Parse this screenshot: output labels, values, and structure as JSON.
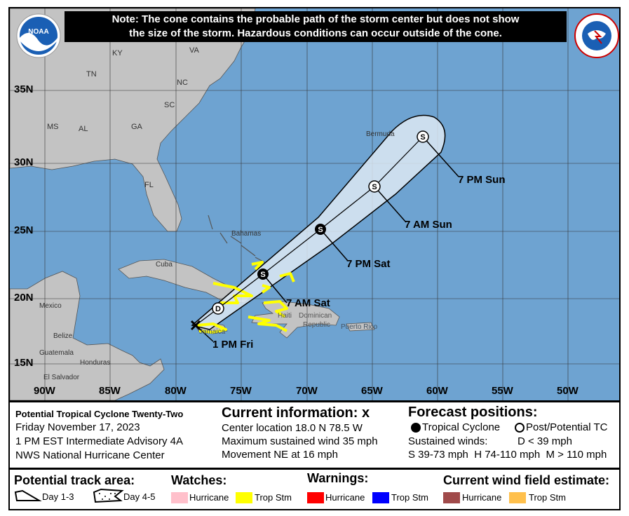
{
  "note": {
    "line1": "Note: The cone contains the probable path of the storm center but does not show",
    "line2": "the size of the storm. Hazardous conditions can occur outside of the cone."
  },
  "logos": {
    "left": "NOAA",
    "right": "NATIONAL WEATHER SERVICE"
  },
  "map": {
    "colors": {
      "ocean": "#6ea3d1",
      "land": "#c3c3c3",
      "cone": "#dde9f3",
      "watch_trop_stm": "#ffff00"
    },
    "lat_labels": [
      "35N",
      "30N",
      "25N",
      "20N",
      "15N"
    ],
    "lon_labels": [
      "90W",
      "85W",
      "80W",
      "75W",
      "70W",
      "65W",
      "60W",
      "55W",
      "50W"
    ],
    "place_labels": {
      "ky": "KY",
      "va": "VA",
      "tn": "TN",
      "nc": "NC",
      "sc": "SC",
      "ms": "MS",
      "al": "AL",
      "ga": "GA",
      "fl": "FL",
      "bermuda": "Bermuda",
      "bahamas": "Bahamas",
      "cuba": "Cuba",
      "mexico": "Mexico",
      "belize": "Belize",
      "guatemala": "Guatemala",
      "honduras": "Honduras",
      "el_salvador": "El Salvador",
      "jamaica": "Jamaica",
      "haiti": "Haiti",
      "dominican": "Dominican",
      "republic": "Republic",
      "puerto_rico": "Puerto Rico"
    },
    "track": [
      {
        "label": "1 PM Fri",
        "symbol": "X"
      },
      {
        "label": "",
        "symbol": "D",
        "type": "post-potential"
      },
      {
        "label": "7 AM Sat",
        "symbol": "S",
        "type": "tropical"
      },
      {
        "label": "7 PM Sat",
        "symbol": "S",
        "type": "tropical"
      },
      {
        "label": "7 AM Sun",
        "symbol": "S",
        "type": "post-potential"
      },
      {
        "label": "7 PM Sun",
        "symbol": "S",
        "type": "post-potential"
      }
    ]
  },
  "info": {
    "storm_name": "Potential Tropical Cyclone Twenty-Two",
    "date": "Friday November 17, 2023",
    "advisory": "1 PM EST Intermediate Advisory 4A",
    "center": "NWS National Hurricane Center",
    "current_title": "Current information: x",
    "center_location": "Center location 18.0 N 78.5 W",
    "max_wind": "Maximum sustained wind 35 mph",
    "movement": "Movement NE at 16 mph",
    "forecast_title": "Forecast positions:",
    "tropical_cyclone": "Tropical Cyclone",
    "post_potential": "Post/Potential TC",
    "sustained_winds": "Sustained winds:",
    "d_range": "D < 39 mph",
    "s_h_m": "S 39-73 mph  H 74-110 mph  M > 110 mph"
  },
  "legend": {
    "track_area": "Potential track area:",
    "day13": "Day 1-3",
    "day45": "Day 4-5",
    "watches": "Watches:",
    "warnings": "Warnings:",
    "wind_field": "Current wind field estimate:",
    "items": [
      {
        "label": "Hurricane",
        "color": "#ffc0cb"
      },
      {
        "label": "Trop Stm",
        "color": "#ffff00"
      },
      {
        "label": "Hurricane",
        "color": "#ff0000"
      },
      {
        "label": "Trop Stm",
        "color": "#0000ff"
      },
      {
        "label": "Hurricane",
        "color": "#a04a4a"
      },
      {
        "label": "Trop Stm",
        "color": "#ffc04c"
      }
    ]
  }
}
